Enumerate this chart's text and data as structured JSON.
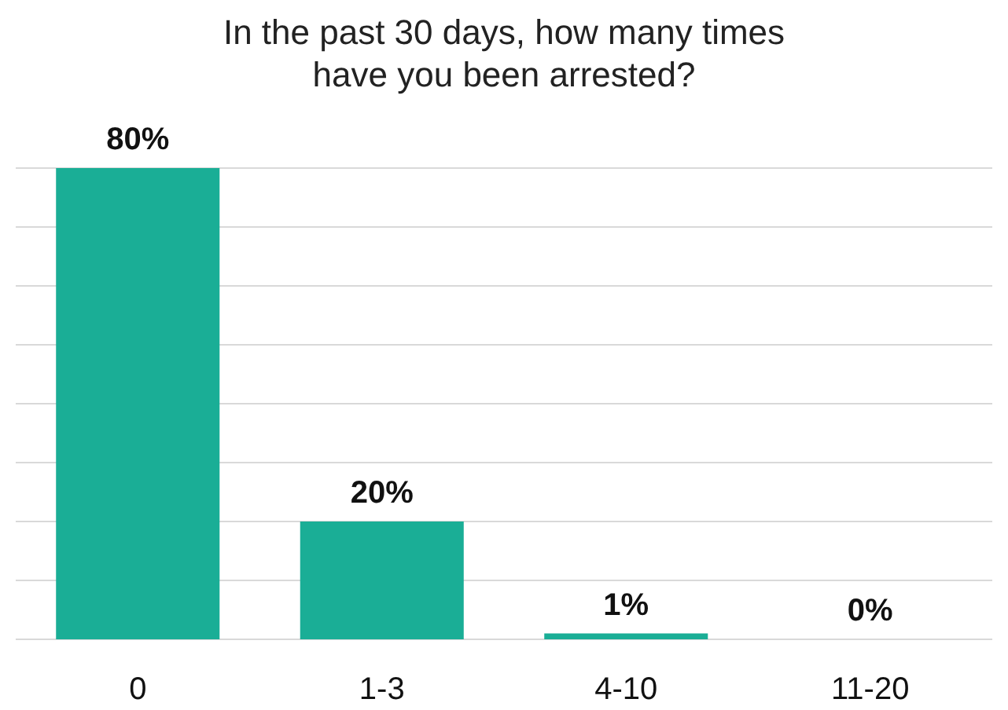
{
  "chart_data": {
    "type": "bar",
    "title": "In the past 30 days, how many times have you been arrested?",
    "categories": [
      "0",
      "1-3",
      "4-10",
      "11-20"
    ],
    "values": [
      80,
      20,
      1,
      0
    ],
    "value_labels": [
      "80%",
      "20%",
      "1%",
      "0%"
    ],
    "color": "#1aae96",
    "ylim": [
      0,
      80
    ],
    "yticks": [
      {
        "value": 0,
        "label": null
      },
      {
        "value": 10,
        "label": null
      },
      {
        "value": 20,
        "label": null
      },
      {
        "value": 30,
        "label": null
      },
      {
        "value": 40,
        "label": null
      },
      {
        "value": 50,
        "label": null
      },
      {
        "value": 60,
        "label": null
      },
      {
        "value": 70,
        "label": null
      },
      {
        "value": 80,
        "label": null
      }
    ],
    "grid": "y",
    "tick_labels": "x"
  }
}
